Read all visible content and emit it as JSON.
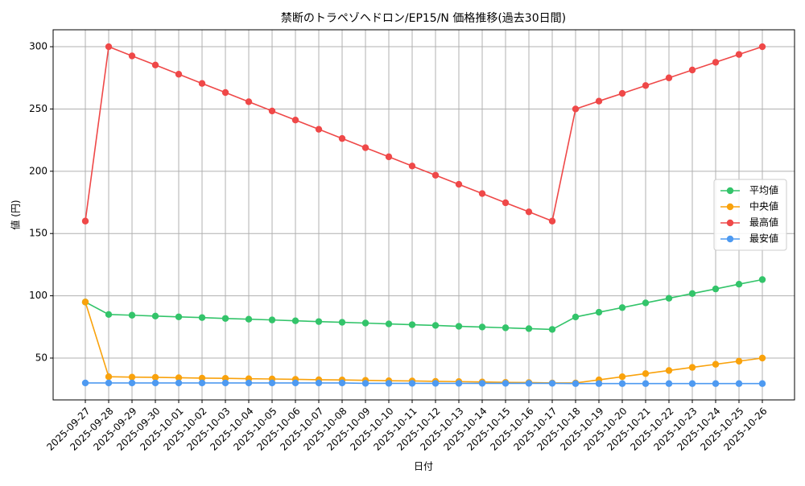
{
  "chart_data": {
    "type": "line",
    "title": "禁断のトラペゾヘドロン/EP15/N 価格推移(過去30日間)",
    "x_label": "日付",
    "y_label": "値 (円)",
    "categories": [
      "2025-09-27",
      "2025-09-28",
      "2025-09-29",
      "2025-09-30",
      "2025-10-01",
      "2025-10-02",
      "2025-10-03",
      "2025-10-04",
      "2025-10-05",
      "2025-10-06",
      "2025-10-07",
      "2025-10-08",
      "2025-10-09",
      "2025-10-10",
      "2025-10-11",
      "2025-10-12",
      "2025-10-13",
      "2025-10-14",
      "2025-10-15",
      "2025-10-16",
      "2025-10-17",
      "2025-10-18",
      "2025-10-19",
      "2025-10-20",
      "2025-10-21",
      "2025-10-22",
      "2025-10-23",
      "2025-10-24",
      "2025-10-25",
      "2025-10-26"
    ],
    "series": [
      {
        "name": "平均値",
        "color": "#33c46a",
        "values": [
          95,
          85,
          84.4,
          83.7,
          83.1,
          82.5,
          81.8,
          81.2,
          80.6,
          79.9,
          79.3,
          78.7,
          78.1,
          77.4,
          76.8,
          76.2,
          75.5,
          74.9,
          74.3,
          73.6,
          73,
          83,
          86.8,
          90.5,
          94.3,
          98,
          101.8,
          105.5,
          109.3,
          113
        ]
      },
      {
        "name": "中央値",
        "color": "#f9a20c",
        "values": [
          95,
          35,
          34.7,
          34.5,
          34.2,
          33.9,
          33.7,
          33.4,
          33.2,
          32.9,
          32.6,
          32.4,
          32.1,
          31.8,
          31.6,
          31.3,
          31.1,
          30.8,
          30.5,
          30.3,
          30,
          30,
          32.5,
          35,
          37.5,
          40,
          42.5,
          45,
          47.5,
          50
        ]
      },
      {
        "name": "最高値",
        "color": "#ef4848",
        "values": [
          160,
          300,
          292.6,
          285.3,
          277.9,
          270.5,
          263.2,
          255.8,
          248.4,
          241.1,
          233.7,
          226.3,
          218.9,
          211.6,
          204.2,
          196.8,
          189.5,
          182.1,
          174.7,
          167.4,
          160,
          250,
          256.3,
          262.5,
          268.8,
          275,
          281.3,
          287.5,
          293.8,
          300
        ]
      },
      {
        "name": "最安値",
        "color": "#4e9af1",
        "values": [
          30,
          30,
          30,
          30,
          30,
          30,
          30,
          30,
          30,
          30,
          30,
          30,
          29.7,
          29.7,
          29.7,
          29.7,
          29.7,
          29.7,
          29.7,
          29.7,
          29.7,
          29.5,
          29.5,
          29.5,
          29.5,
          29.5,
          29.5,
          29.5,
          29.5,
          29.5
        ]
      }
    ],
    "ylim": [
      16.4,
      313.6
    ],
    "yticks": [
      50,
      100,
      150,
      200,
      250,
      300
    ],
    "grid": true,
    "legend": "center right"
  }
}
